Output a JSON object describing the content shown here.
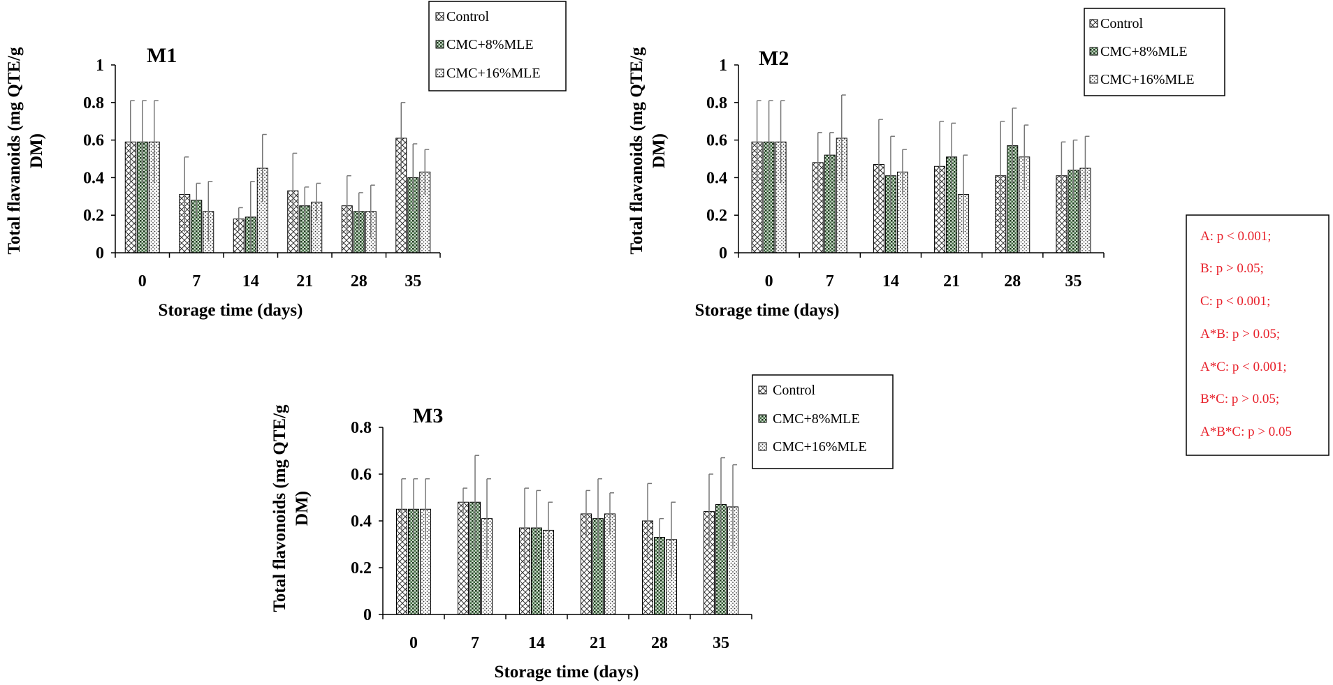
{
  "legend_labels": [
    "Control",
    "CMC+8%MLE",
    "CMC+16%MLE"
  ],
  "stats": {
    "lines": [
      "A: p < 0.001;",
      "B: p > 0.05;",
      "C: p < 0.001;",
      "A*B: p > 0.05;",
      "A*C: p < 0.001;",
      "B*C: p > 0.05;",
      "A*B*C: p > 0.05"
    ],
    "color": "#e8202a"
  },
  "chart_data": [
    {
      "type": "bar",
      "title": "M1",
      "xlabel": "Storage time (days)",
      "ylabel_lines": [
        "Total flavanoids (mg QTE/g",
        "DM)"
      ],
      "categories": [
        "0",
        "7",
        "14",
        "21",
        "28",
        "35"
      ],
      "ylim": [
        0,
        1
      ],
      "yticks": [
        "0",
        "0.2",
        "0.4",
        "0.6",
        "0.8",
        "1"
      ],
      "series": [
        {
          "name": "Control",
          "values": [
            0.59,
            0.31,
            0.18,
            0.33,
            0.25,
            0.61
          ],
          "errors": [
            0.22,
            0.2,
            0.06,
            0.2,
            0.16,
            0.19
          ]
        },
        {
          "name": "CMC+8%MLE",
          "values": [
            0.59,
            0.28,
            0.19,
            0.25,
            0.22,
            0.4
          ],
          "errors": [
            0.22,
            0.09,
            0.19,
            0.1,
            0.1,
            0.18
          ]
        },
        {
          "name": "CMC+16%MLE",
          "values": [
            0.59,
            0.22,
            0.45,
            0.27,
            0.22,
            0.43
          ],
          "errors": [
            0.22,
            0.16,
            0.18,
            0.1,
            0.14,
            0.12
          ]
        }
      ]
    },
    {
      "type": "bar",
      "title": "M2",
      "xlabel": "Storage time (days)",
      "ylabel_lines": [
        "Total flavanoids (mg QTE/g",
        "DM)"
      ],
      "categories": [
        "0",
        "7",
        "14",
        "21",
        "28",
        "35"
      ],
      "ylim": [
        0,
        1
      ],
      "yticks": [
        "0",
        "0.2",
        "0.4",
        "0.6",
        "0.8",
        "1"
      ],
      "series": [
        {
          "name": "Control",
          "values": [
            0.59,
            0.48,
            0.47,
            0.46,
            0.41,
            0.41
          ],
          "errors": [
            0.22,
            0.16,
            0.24,
            0.24,
            0.29,
            0.18
          ]
        },
        {
          "name": "CMC+8%MLE",
          "values": [
            0.59,
            0.52,
            0.41,
            0.51,
            0.57,
            0.44
          ],
          "errors": [
            0.22,
            0.12,
            0.21,
            0.18,
            0.2,
            0.16
          ]
        },
        {
          "name": "CMC+16%MLE",
          "values": [
            0.59,
            0.61,
            0.43,
            0.31,
            0.51,
            0.45
          ],
          "errors": [
            0.22,
            0.23,
            0.12,
            0.21,
            0.17,
            0.17
          ]
        }
      ]
    },
    {
      "type": "bar",
      "title": "M3",
      "xlabel": "Storage time (days)",
      "ylabel_lines": [
        "Total flavonoids (mg QTE/g",
        "DM)"
      ],
      "categories": [
        "0",
        "7",
        "14",
        "21",
        "28",
        "35"
      ],
      "ylim": [
        0,
        0.8
      ],
      "yticks": [
        "0",
        "0.2",
        "0.4",
        "0.6",
        "0.8"
      ],
      "series": [
        {
          "name": "Control",
          "values": [
            0.45,
            0.48,
            0.37,
            0.43,
            0.4,
            0.44
          ],
          "errors": [
            0.13,
            0.06,
            0.17,
            0.1,
            0.16,
            0.16
          ]
        },
        {
          "name": "CMC+8%MLE",
          "values": [
            0.45,
            0.48,
            0.37,
            0.41,
            0.33,
            0.47
          ],
          "errors": [
            0.13,
            0.2,
            0.16,
            0.17,
            0.08,
            0.2
          ]
        },
        {
          "name": "CMC+16%MLE",
          "values": [
            0.45,
            0.41,
            0.36,
            0.43,
            0.32,
            0.46
          ],
          "errors": [
            0.13,
            0.17,
            0.12,
            0.09,
            0.16,
            0.18
          ]
        }
      ]
    }
  ]
}
